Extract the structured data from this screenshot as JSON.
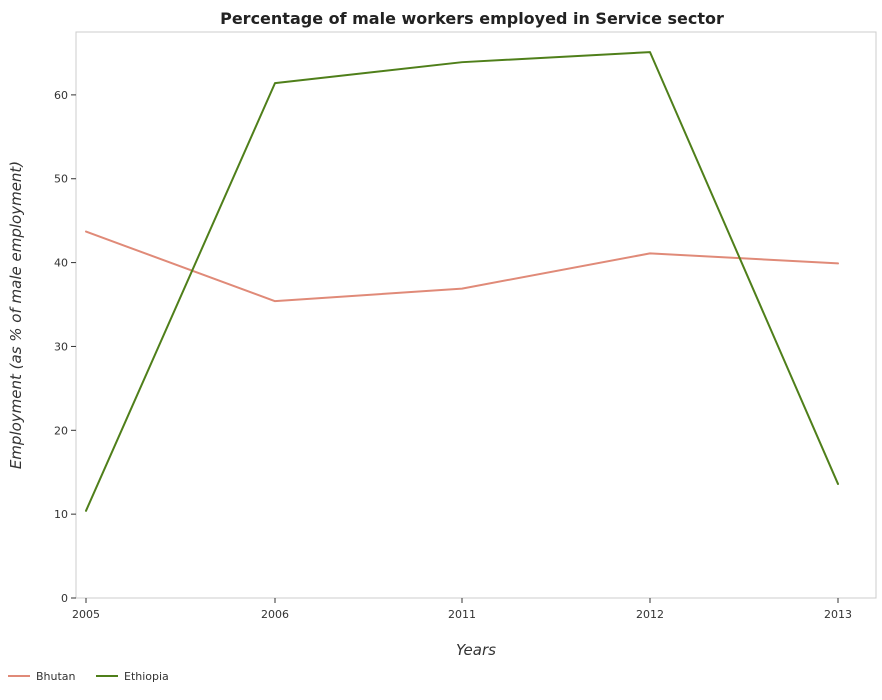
{
  "chart_data": {
    "type": "line",
    "title": "Percentage of male workers employed in Service sector",
    "xlabel": "Years",
    "ylabel": "Employment (as % of male employment)",
    "categories": [
      "2005",
      "2006",
      "2011",
      "2012",
      "2013"
    ],
    "ylim": [
      0,
      67.5
    ],
    "yticks": [
      0,
      10,
      20,
      30,
      40,
      50,
      60
    ],
    "ytick_labels": [
      "0",
      "10",
      "20",
      "30",
      "40",
      "50",
      "60"
    ],
    "grid": false,
    "legend_position": "bottom-left",
    "series": [
      {
        "name": "Bhutan",
        "color": "#e08a78",
        "values": [
          43.7,
          35.4,
          36.9,
          41.1,
          39.9
        ]
      },
      {
        "name": "Ethiopia",
        "color": "#4f7f1a",
        "values": [
          10.4,
          61.4,
          63.9,
          65.1,
          13.6
        ]
      }
    ]
  }
}
